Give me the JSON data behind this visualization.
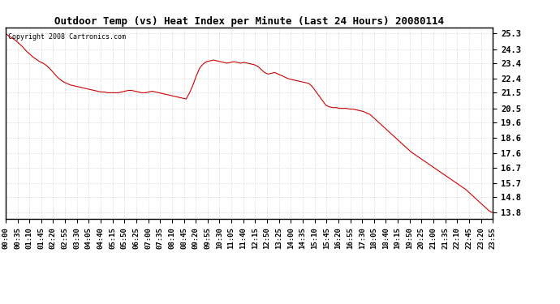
{
  "title": "Outdoor Temp (vs) Heat Index per Minute (Last 24 Hours) 20080114",
  "copyright_text": "Copyright 2008 Cartronics.com",
  "line_color": "#cc0000",
  "background_color": "#ffffff",
  "grid_color": "#cccccc",
  "yticks": [
    13.8,
    14.8,
    15.7,
    16.7,
    17.6,
    18.6,
    19.6,
    20.5,
    21.5,
    22.4,
    23.4,
    24.3,
    25.3
  ],
  "ymin": 13.4,
  "ymax": 25.7,
  "xtick_labels": [
    "00:00",
    "00:35",
    "01:10",
    "01:45",
    "02:20",
    "02:55",
    "03:30",
    "04:05",
    "04:40",
    "05:15",
    "05:50",
    "06:25",
    "07:00",
    "07:35",
    "08:10",
    "08:45",
    "09:20",
    "09:55",
    "10:30",
    "11:05",
    "11:40",
    "12:15",
    "12:50",
    "13:25",
    "14:00",
    "14:35",
    "15:10",
    "15:45",
    "16:20",
    "16:55",
    "17:30",
    "18:05",
    "18:40",
    "19:15",
    "19:50",
    "20:25",
    "21:00",
    "21:35",
    "22:10",
    "22:45",
    "23:20",
    "23:55"
  ],
  "curve": [
    25.3,
    25.15,
    25.0,
    24.85,
    24.65,
    24.45,
    24.2,
    24.0,
    23.8,
    23.65,
    23.5,
    23.4,
    23.25,
    23.05,
    22.8,
    22.55,
    22.35,
    22.2,
    22.1,
    22.0,
    21.95,
    21.9,
    21.85,
    21.8,
    21.75,
    21.7,
    21.65,
    21.6,
    21.55,
    21.55,
    21.5,
    21.5,
    21.5,
    21.5,
    21.55,
    21.6,
    21.65,
    21.65,
    21.6,
    21.55,
    21.5,
    21.5,
    21.55,
    21.6,
    21.55,
    21.5,
    21.45,
    21.4,
    21.35,
    21.3,
    21.25,
    21.2,
    21.15,
    21.1,
    21.5,
    22.0,
    22.6,
    23.1,
    23.35,
    23.5,
    23.55,
    23.6,
    23.55,
    23.5,
    23.45,
    23.4,
    23.45,
    23.5,
    23.45,
    23.4,
    23.45,
    23.4,
    23.35,
    23.3,
    23.2,
    23.0,
    22.8,
    22.7,
    22.75,
    22.8,
    22.7,
    22.6,
    22.5,
    22.4,
    22.35,
    22.3,
    22.25,
    22.2,
    22.15,
    22.1,
    21.9,
    21.6,
    21.3,
    21.0,
    20.7,
    20.6,
    20.55,
    20.55,
    20.5,
    20.5,
    20.5,
    20.45,
    20.45,
    20.4,
    20.35,
    20.3,
    20.2,
    20.1,
    19.9,
    19.7,
    19.5,
    19.3,
    19.1,
    18.9,
    18.7,
    18.5,
    18.3,
    18.1,
    17.9,
    17.7,
    17.55,
    17.4,
    17.25,
    17.1,
    16.95,
    16.8,
    16.65,
    16.5,
    16.35,
    16.2,
    16.05,
    15.9,
    15.75,
    15.6,
    15.45,
    15.3,
    15.1,
    14.9,
    14.7,
    14.5,
    14.3,
    14.1,
    13.9,
    13.8
  ],
  "title_fontsize": 9,
  "tick_fontsize": 6.5,
  "ytick_fontsize": 7.5,
  "copyright_fontsize": 6
}
